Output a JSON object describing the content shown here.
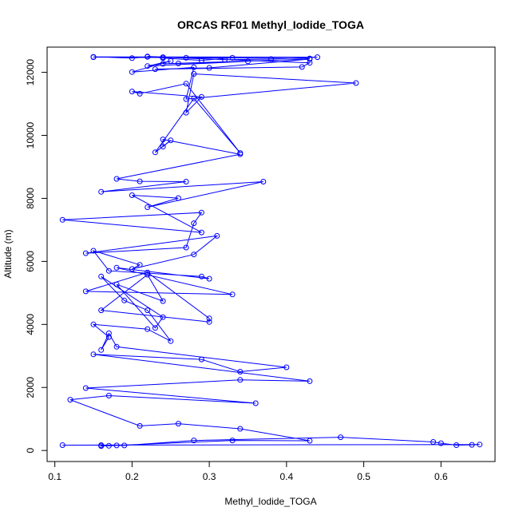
{
  "chart_data": {
    "type": "line",
    "title": "ORCAS RF01 Methyl_Iodide_TOGA",
    "xlabel": "Methyl_Iodide_TOGA",
    "ylabel": "Altitude (m)",
    "xlim": [
      0.09,
      0.67
    ],
    "ylim": [
      -350,
      12800
    ],
    "x_ticks": [
      0.1,
      0.2,
      0.3,
      0.4,
      0.5,
      0.6
    ],
    "x_tick_labels": [
      "0.1",
      "0.2",
      "0.3",
      "0.4",
      "0.5",
      "0.6"
    ],
    "y_ticks": [
      0,
      2000,
      4000,
      6000,
      8000,
      10000,
      12000
    ],
    "y_tick_labels": [
      "0",
      "2000",
      "4000",
      "6000",
      "8000",
      "10000",
      "12000"
    ],
    "grid": false,
    "legend": "none",
    "series_color": "#0000ff",
    "marker": "open-circle",
    "x": [
      0.11,
      0.65,
      0.64,
      0.62,
      0.6,
      0.59,
      0.47,
      0.28,
      0.19,
      0.18,
      0.17,
      0.16,
      0.16,
      0.33,
      0.43,
      0.34,
      0.26,
      0.21,
      0.12,
      0.17,
      0.36,
      0.14,
      0.34,
      0.43,
      0.15,
      0.29,
      0.34,
      0.4,
      0.18,
      0.17,
      0.16,
      0.17,
      0.15,
      0.22,
      0.25,
      0.22,
      0.19,
      0.16,
      0.24,
      0.23,
      0.18,
      0.24,
      0.22,
      0.16,
      0.3,
      0.3,
      0.22,
      0.14,
      0.33,
      0.18,
      0.3,
      0.29,
      0.17,
      0.15,
      0.21,
      0.2,
      0.28,
      0.31,
      0.14,
      0.27,
      0.28,
      0.29,
      0.11,
      0.29,
      0.2,
      0.26,
      0.22,
      0.37,
      0.16,
      0.27,
      0.21,
      0.18,
      0.34,
      0.24,
      0.24,
      0.25,
      0.23,
      0.28,
      0.34,
      0.27,
      0.21,
      0.2,
      0.29,
      0.27,
      0.28,
      0.49,
      0.27,
      0.28,
      0.2,
      0.25,
      0.22,
      0.35,
      0.26,
      0.24,
      0.43,
      0.3,
      0.23,
      0.42,
      0.43,
      0.22,
      0.27,
      0.24,
      0.32,
      0.38,
      0.44,
      0.15,
      0.2,
      0.22,
      0.24,
      0.29,
      0.33,
      0.15,
      0.43
    ],
    "y": [
      170,
      190,
      180,
      170,
      230,
      270,
      420,
      320,
      160,
      160,
      150,
      170,
      140,
      320,
      310,
      690,
      850,
      780,
      1610,
      1740,
      1500,
      1980,
      2240,
      2200,
      3050,
      2890,
      2500,
      2640,
      3290,
      3720,
      3190,
      3600,
      4000,
      3850,
      3470,
      4450,
      4760,
      5520,
      4230,
      3890,
      5270,
      4740,
      5580,
      4450,
      4080,
      4190,
      5650,
      5050,
      4950,
      5800,
      5450,
      5520,
      5700,
      6340,
      5890,
      5760,
      6220,
      6810,
      6260,
      6440,
      7210,
      7550,
      7320,
      6920,
      8100,
      8010,
      7720,
      8530,
      8210,
      8530,
      8540,
      8620,
      9400,
      9870,
      9640,
      9840,
      9460,
      11170,
      9440,
      11640,
      11320,
      11390,
      11220,
      10720,
      11950,
      11660,
      11150,
      12160,
      12010,
      12360,
      12200,
      12350,
      12280,
      12270,
      12420,
      12140,
      12100,
      12170,
      12300,
      12500,
      12460,
      12480,
      12400,
      12420,
      12480,
      12490,
      12450,
      12490,
      12450,
      12380,
      12460,
      12480,
      12440
    ]
  }
}
